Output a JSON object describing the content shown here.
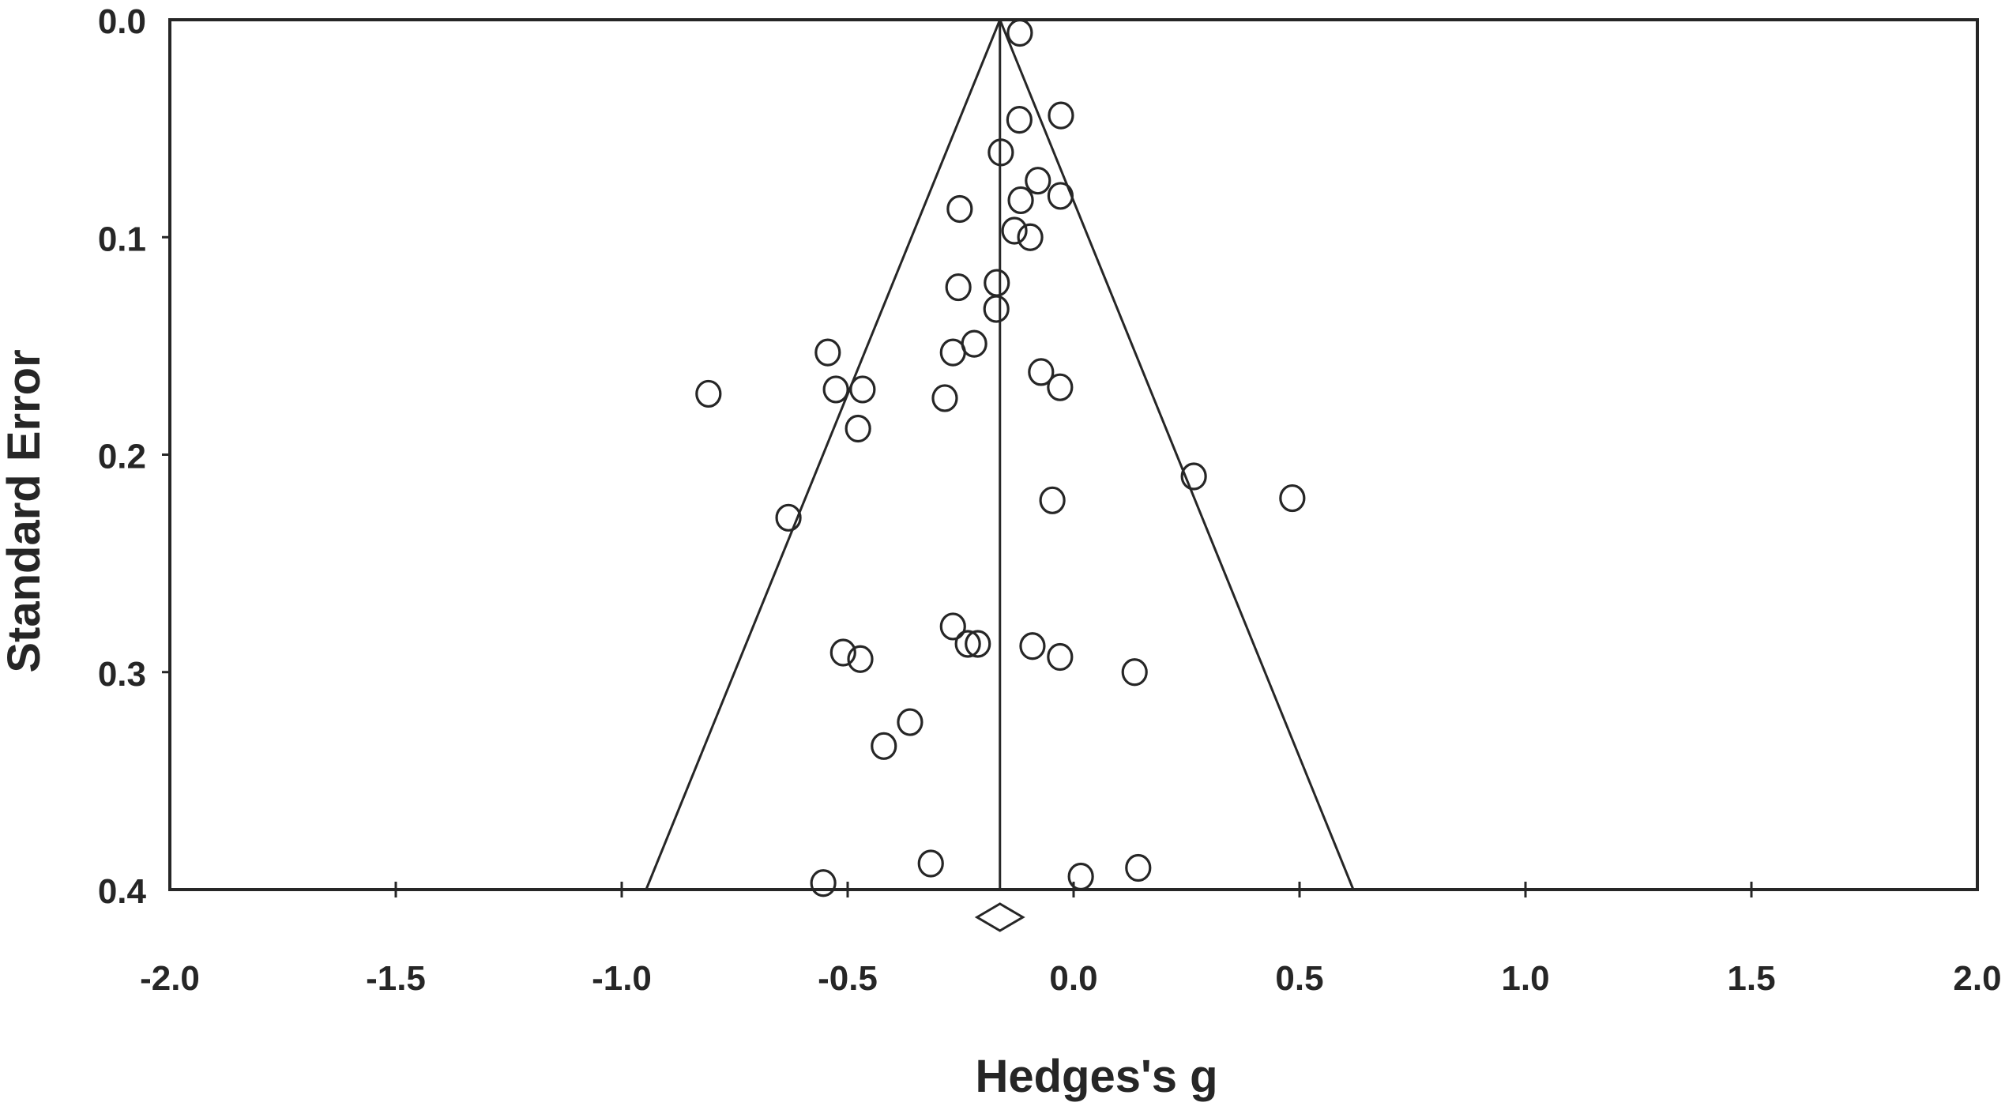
{
  "chart_data": {
    "type": "scatter",
    "subtype": "funnel-plot",
    "title": "",
    "xlabel": "Hedges's g",
    "ylabel": "Standard Error",
    "xlim": [
      -2.0,
      2.0
    ],
    "ylim": [
      0.4,
      0.0
    ],
    "y_inverted": true,
    "grid": false,
    "legend": null,
    "x_ticks": [
      -2.0,
      -1.5,
      -1.0,
      -0.5,
      0.0,
      0.5,
      1.0,
      1.5,
      2.0
    ],
    "x_tick_labels": [
      "-2.0",
      "-1.5",
      "-1.0",
      "-0.5",
      "0.0",
      "0.5",
      "1.0",
      "1.5",
      "2.0"
    ],
    "y_ticks": [
      0.0,
      0.1,
      0.2,
      0.3,
      0.4
    ],
    "y_tick_labels": [
      "0.0",
      "0.1",
      "0.2",
      "0.3",
      "0.4"
    ],
    "pooled_effect": -0.163,
    "funnel": {
      "apex": [
        -0.163,
        0.0
      ],
      "left_base": [
        -0.946,
        0.4
      ],
      "right_base": [
        0.619,
        0.4
      ]
    },
    "marker": "open-circle",
    "summary_marker": "open-diamond",
    "points": [
      {
        "g": -0.119,
        "se": 0.006
      },
      {
        "g": -0.12,
        "se": 0.046
      },
      {
        "g": -0.028,
        "se": 0.044
      },
      {
        "g": -0.161,
        "se": 0.061
      },
      {
        "g": -0.079,
        "se": 0.074
      },
      {
        "g": -0.117,
        "se": 0.083
      },
      {
        "g": -0.029,
        "se": 0.081
      },
      {
        "g": -0.252,
        "se": 0.087
      },
      {
        "g": -0.131,
        "se": 0.097
      },
      {
        "g": -0.096,
        "se": 0.1
      },
      {
        "g": -0.255,
        "se": 0.123
      },
      {
        "g": -0.17,
        "se": 0.121
      },
      {
        "g": -0.171,
        "se": 0.133
      },
      {
        "g": -0.267,
        "se": 0.153
      },
      {
        "g": -0.22,
        "se": 0.149
      },
      {
        "g": -0.072,
        "se": 0.162
      },
      {
        "g": -0.03,
        "se": 0.169
      },
      {
        "g": -0.285,
        "se": 0.174
      },
      {
        "g": -0.808,
        "se": 0.172
      },
      {
        "g": -0.544,
        "se": 0.153
      },
      {
        "g": -0.526,
        "se": 0.17
      },
      {
        "g": -0.467,
        "se": 0.17
      },
      {
        "g": -0.477,
        "se": 0.188
      },
      {
        "g": -0.631,
        "se": 0.229
      },
      {
        "g": -0.047,
        "se": 0.221
      },
      {
        "g": 0.266,
        "se": 0.21
      },
      {
        "g": 0.484,
        "se": 0.22
      },
      {
        "g": -0.51,
        "se": 0.291
      },
      {
        "g": -0.472,
        "se": 0.294
      },
      {
        "g": -0.267,
        "se": 0.279
      },
      {
        "g": -0.234,
        "se": 0.287
      },
      {
        "g": -0.212,
        "se": 0.287
      },
      {
        "g": -0.091,
        "se": 0.288
      },
      {
        "g": -0.03,
        "se": 0.293
      },
      {
        "g": 0.135,
        "se": 0.3
      },
      {
        "g": -0.362,
        "se": 0.323
      },
      {
        "g": -0.42,
        "se": 0.334
      },
      {
        "g": -0.316,
        "se": 0.388
      },
      {
        "g": -0.554,
        "se": 0.397
      },
      {
        "g": 0.016,
        "se": 0.394
      },
      {
        "g": 0.143,
        "se": 0.39
      }
    ]
  },
  "colors": {
    "ink": "#262626",
    "background": "#ffffff"
  }
}
